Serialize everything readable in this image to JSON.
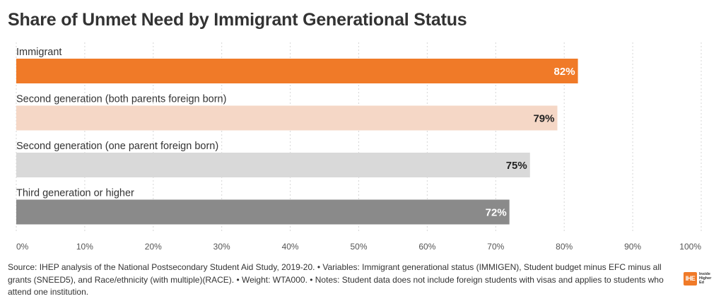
{
  "chart_data": {
    "type": "bar",
    "orientation": "horizontal",
    "title": "Share of Unmet Need by Immigrant Generational Status",
    "categories": [
      "Immigrant",
      "Second generation (both parents foreign born)",
      "Second generation (one parent foreign born)",
      "Third generation or higher"
    ],
    "values": [
      82,
      79,
      75,
      72
    ],
    "value_labels": [
      "82%",
      "79%",
      "75%",
      "72%"
    ],
    "bar_colors": [
      "#f07a28",
      "#f5d7c6",
      "#d9d9d9",
      "#8a8a8a"
    ],
    "label_colors": [
      "#ffffff",
      "#222222",
      "#222222",
      "#ffffff"
    ],
    "xlim": [
      0,
      100
    ],
    "ticks": [
      0,
      10,
      20,
      30,
      40,
      50,
      60,
      70,
      80,
      90,
      100
    ],
    "tick_labels": [
      "0%",
      "10%",
      "20%",
      "30%",
      "40%",
      "50%",
      "60%",
      "70%",
      "80%",
      "90%",
      "100%"
    ],
    "grid": true
  },
  "footer": {
    "source": "Source: IHEP analysis of the National Postsecondary Student Aid Study, 2019-20. • Variables: Immigrant generational status (IMMIGEN), Student budget minus EFC minus all grants (SNEED5), and Race/ethnicity (with multiple)(RACE). • Weight: WTA000. • Notes: Student data does not include foreign students with visas and applies to students who attend one institution."
  },
  "logo": {
    "mark": "IHE",
    "lines": [
      "Inside",
      "Higher",
      "Ed"
    ]
  }
}
